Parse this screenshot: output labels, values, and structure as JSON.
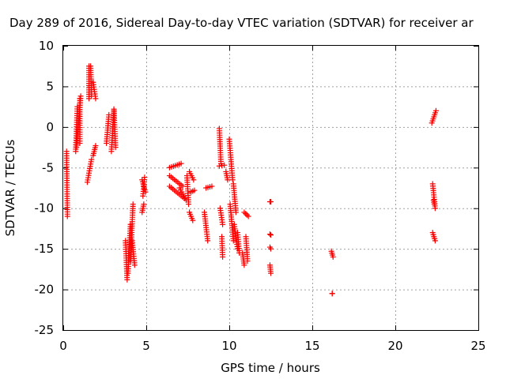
{
  "chart_data": {
    "type": "scatter",
    "title": "Day 289 of 2016, Sidereal Day-to-day VTEC variation (SDTVAR) for receiver ar",
    "xlabel": "GPS time / hours",
    "ylabel": "SDTVAR / TECUs",
    "xlim": [
      0,
      25
    ],
    "ylim": [
      -25,
      10
    ],
    "xticks": [
      0,
      5,
      10,
      15,
      20,
      25
    ],
    "yticks": [
      -25,
      -20,
      -15,
      -10,
      -5,
      0,
      5,
      10
    ],
    "grid": true,
    "marker": "+",
    "color": "#ff0000",
    "series": [
      {
        "name": "SDTVAR",
        "segments": [
          [
            0.2,
            -3.0,
            0.25,
            -11.0
          ],
          [
            0.75,
            -3.0,
            0.85,
            2.5
          ],
          [
            0.8,
            -2.5,
            1.05,
            3.8
          ],
          [
            1.0,
            -2.0,
            1.0,
            3.5
          ],
          [
            1.45,
            -6.8,
            1.7,
            -4.0
          ],
          [
            1.55,
            3.5,
            1.55,
            7.5
          ],
          [
            1.65,
            7.5,
            1.7,
            3.8
          ],
          [
            1.8,
            5.5,
            1.95,
            3.5
          ],
          [
            1.8,
            -3.5,
            1.95,
            -2.3
          ],
          [
            2.6,
            -2.0,
            2.75,
            1.5
          ],
          [
            2.9,
            -3.0,
            3.05,
            2.0
          ],
          [
            3.05,
            2.2,
            3.15,
            -2.5
          ],
          [
            3.75,
            -14.0,
            3.85,
            -18.8
          ],
          [
            3.9,
            -18.0,
            4.05,
            -12.0
          ],
          [
            4.05,
            -16.5,
            4.2,
            -9.5
          ],
          [
            4.15,
            -14.0,
            4.3,
            -17.0
          ],
          [
            4.75,
            -10.5,
            4.85,
            -9.5
          ],
          [
            4.8,
            -8.5,
            4.9,
            -6.2
          ],
          [
            4.75,
            -6.5,
            4.95,
            -8.0
          ],
          [
            6.4,
            -5.0,
            7.1,
            -4.5
          ],
          [
            6.4,
            -6.0,
            7.2,
            -7.3
          ],
          [
            6.4,
            -7.3,
            7.3,
            -8.8
          ],
          [
            7.0,
            -7.5,
            7.4,
            -9.0
          ],
          [
            7.55,
            -9.5,
            7.45,
            -6.0
          ],
          [
            7.6,
            -5.5,
            7.85,
            -6.5
          ],
          [
            7.6,
            -10.5,
            7.8,
            -11.5
          ],
          [
            7.7,
            -8.0,
            7.9,
            -7.8
          ],
          [
            8.5,
            -10.5,
            8.7,
            -14.0
          ],
          [
            8.6,
            -7.5,
            8.95,
            -7.3
          ],
          [
            9.4,
            -0.2,
            9.5,
            -4.5
          ],
          [
            9.4,
            -4.8,
            9.7,
            -4.7
          ],
          [
            9.45,
            -10.0,
            9.6,
            -12.0
          ],
          [
            9.55,
            -13.5,
            9.6,
            -16.0
          ],
          [
            9.8,
            -5.5,
            9.9,
            -6.5
          ],
          [
            10.0,
            -1.5,
            10.2,
            -6.5
          ],
          [
            10.05,
            -9.5,
            10.25,
            -14.0
          ],
          [
            10.25,
            -7.0,
            10.4,
            -10.5
          ],
          [
            10.3,
            -12.0,
            10.5,
            -15.0
          ],
          [
            10.5,
            -13.0,
            10.6,
            -15.5
          ],
          [
            10.8,
            -15.5,
            10.9,
            -17.0
          ],
          [
            10.9,
            -10.5,
            11.15,
            -11.0
          ],
          [
            11.0,
            -13.5,
            11.1,
            -16.5
          ],
          [
            12.45,
            -9.2,
            12.5,
            -9.2
          ],
          [
            12.45,
            -13.2,
            12.5,
            -13.3
          ],
          [
            12.45,
            -14.8,
            12.5,
            -15.0
          ],
          [
            12.45,
            -17.0,
            12.5,
            -18.0
          ],
          [
            16.15,
            -15.3,
            16.25,
            -16.0
          ],
          [
            16.2,
            -20.5,
            16.2,
            -20.5
          ],
          [
            22.2,
            0.5,
            22.45,
            2.0
          ],
          [
            22.25,
            -7.0,
            22.4,
            -10.0
          ],
          [
            22.3,
            -9.0,
            22.35,
            -9.5
          ],
          [
            22.25,
            -13.0,
            22.4,
            -14.0
          ]
        ]
      }
    ]
  }
}
